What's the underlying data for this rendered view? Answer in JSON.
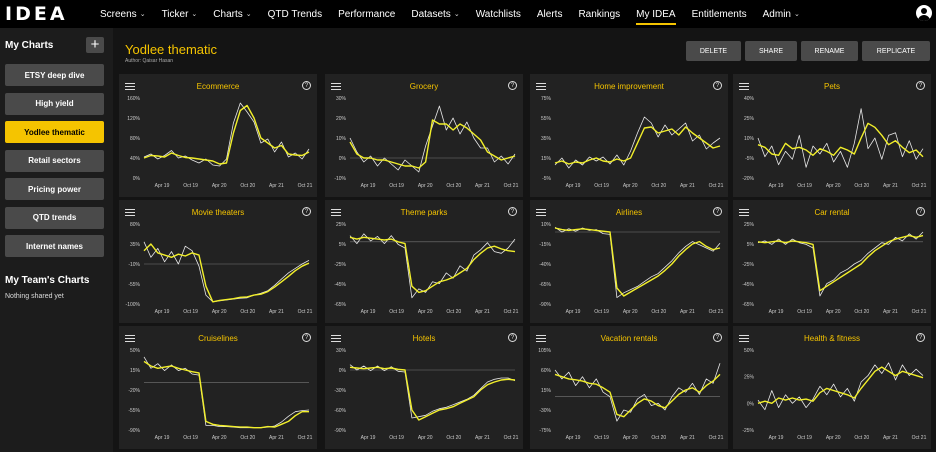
{
  "brand": {
    "logo_text": "IDEA"
  },
  "nav": [
    {
      "label": "Screens",
      "caret": true
    },
    {
      "label": "Ticker",
      "caret": true
    },
    {
      "label": "Charts",
      "caret": true
    },
    {
      "label": "QTD Trends",
      "caret": false
    },
    {
      "label": "Performance",
      "caret": false
    },
    {
      "label": "Datasets",
      "caret": true
    },
    {
      "label": "Watchlists",
      "caret": false
    },
    {
      "label": "Alerts",
      "caret": false
    },
    {
      "label": "Rankings",
      "caret": false
    },
    {
      "label": "My IDEA",
      "caret": false,
      "active": true
    },
    {
      "label": "Entitlements",
      "caret": false
    },
    {
      "label": "Admin",
      "caret": true
    }
  ],
  "sidebar": {
    "heading": "My Charts",
    "add_label": "+",
    "items": [
      {
        "label": "ETSY deep dive"
      },
      {
        "label": "High yield"
      },
      {
        "label": "Yodlee thematic",
        "active": true
      },
      {
        "label": "Retail sectors"
      },
      {
        "label": "Pricing power"
      },
      {
        "label": "QTD trends"
      },
      {
        "label": "Internet names"
      }
    ],
    "team_heading": "My Team's Charts",
    "team_empty": "Nothing shared yet"
  },
  "page": {
    "title": "Yodlee thematic",
    "author": "Author: Qaisar Hasan",
    "buttons": {
      "delete": "DELETE",
      "share": "SHARE",
      "rename": "RENAME",
      "replicate": "REPLICATE"
    }
  },
  "colors": {
    "accent": "#f5c400",
    "line_yellow": "#f2ef2a",
    "line_white": "#e8e8e8"
  },
  "icons": {
    "menu": "hamburger-icon",
    "help": "help-icon",
    "user": "user-icon"
  },
  "chart_data": [
    {
      "type": "line",
      "title": "Ecommerce",
      "yticks": [
        "160%",
        "120%",
        "80%",
        "40%",
        "0%"
      ],
      "ylim": [
        0,
        160
      ],
      "xticks": [
        "Apr 19",
        "Oct 19",
        "Apr 20",
        "Oct 20",
        "Apr 21",
        "Oct 21"
      ],
      "ref": null,
      "series": [
        {
          "values": [
            40,
            45,
            44,
            42,
            50,
            45,
            41,
            40,
            38,
            36,
            34,
            28,
            30,
            90,
            135,
            145,
            120,
            80,
            70,
            60,
            65,
            48,
            46,
            45,
            52
          ]
        },
        {
          "values": [
            42,
            48,
            38,
            45,
            55,
            40,
            44,
            36,
            30,
            38,
            26,
            24,
            38,
            110,
            150,
            132,
            112,
            70,
            78,
            52,
            72,
            42,
            50,
            38,
            58
          ]
        }
      ]
    },
    {
      "type": "line",
      "title": "Grocery",
      "yticks": [
        "30%",
        "20%",
        "10%",
        "0%",
        "-10%"
      ],
      "ylim": [
        -10,
        30
      ],
      "xticks": [
        "Apr 19",
        "Oct 19",
        "Apr 20",
        "Oct 20",
        "Apr 21",
        "Oct 21"
      ],
      "ref": 0,
      "series": [
        {
          "values": [
            8,
            2,
            0,
            0,
            -1,
            -1,
            -2,
            -3,
            -4,
            -4,
            -5,
            -2,
            19,
            17,
            17,
            14,
            17,
            15,
            12,
            9,
            3,
            1,
            -1,
            0,
            1
          ]
        },
        {
          "values": [
            10,
            3,
            -2,
            1,
            -4,
            0,
            -3,
            -6,
            -1,
            -4,
            -7,
            6,
            16,
            26,
            14,
            20,
            12,
            18,
            10,
            5,
            5,
            -2,
            1,
            -3,
            2
          ]
        }
      ]
    },
    {
      "type": "line",
      "title": "Home improvement",
      "yticks": [
        "75%",
        "55%",
        "35%",
        "15%",
        "-5%"
      ],
      "ylim": [
        -5,
        75
      ],
      "xticks": [
        "Apr 19",
        "Oct 19",
        "Apr 20",
        "Oct 20",
        "Apr 21",
        "Oct 21"
      ],
      "ref": null,
      "series": [
        {
          "values": [
            10,
            12,
            9,
            11,
            10,
            13,
            15,
            12,
            11,
            14,
            12,
            15,
            30,
            45,
            46,
            40,
            42,
            44,
            38,
            46,
            40,
            35,
            30,
            25,
            27
          ]
        },
        {
          "values": [
            8,
            15,
            5,
            13,
            8,
            16,
            12,
            16,
            9,
            18,
            8,
            22,
            40,
            56,
            50,
            36,
            48,
            38,
            44,
            50,
            32,
            38,
            24,
            30,
            35
          ]
        }
      ]
    },
    {
      "type": "line",
      "title": "Pets",
      "yticks": [
        "40%",
        "25%",
        "10%",
        "-5%",
        "-20%"
      ],
      "ylim": [
        -20,
        40
      ],
      "xticks": [
        "Apr 19",
        "Oct 19",
        "Apr 20",
        "Oct 20",
        "Apr 21",
        "Oct 21"
      ],
      "ref": null,
      "series": [
        {
          "values": [
            5,
            3,
            -2,
            -3,
            6,
            2,
            3,
            1,
            -3,
            2,
            0,
            -3,
            3,
            1,
            -2,
            10,
            21,
            18,
            12,
            5,
            8,
            3,
            -1,
            1,
            -4
          ]
        },
        {
          "values": [
            10,
            -4,
            4,
            -10,
            0,
            -6,
            12,
            -12,
            4,
            -2,
            6,
            -8,
            0,
            -12,
            6,
            32,
            2,
            10,
            -6,
            12,
            14,
            -4,
            8,
            -6,
            2
          ]
        }
      ]
    },
    {
      "type": "line",
      "title": "Movie theaters",
      "yticks": [
        "80%",
        "35%",
        "-10%",
        "-55%",
        "-100%"
      ],
      "ylim": [
        -100,
        80
      ],
      "xticks": [
        "Apr 19",
        "Oct 19",
        "Apr 20",
        "Oct 20",
        "Apr 21",
        "Oct 21"
      ],
      "ref": -10,
      "series": [
        {
          "values": [
            20,
            35,
            15,
            10,
            5,
            12,
            8,
            15,
            10,
            -60,
            -95,
            -92,
            -90,
            -88,
            -85,
            -84,
            -80,
            -78,
            -72,
            -62,
            -50,
            -38,
            -25,
            -15,
            -8
          ]
        },
        {
          "values": [
            40,
            5,
            25,
            -5,
            18,
            -10,
            30,
            20,
            -15,
            -80,
            -95,
            -93,
            -91,
            -89,
            -87,
            -86,
            -80,
            -76,
            -70,
            -58,
            -44,
            -30,
            -20,
            -10,
            -2
          ]
        }
      ]
    },
    {
      "type": "line",
      "title": "Theme parks",
      "yticks": [
        "25%",
        "5%",
        "-25%",
        "-45%",
        "-65%"
      ],
      "ylim": [
        -65,
        25
      ],
      "xticks": [
        "Apr 19",
        "Oct 19",
        "Apr 20",
        "Oct 20",
        "Apr 21",
        "Oct 21"
      ],
      "ref": 5,
      "series": [
        {
          "values": [
            10,
            8,
            10,
            9,
            8,
            7,
            8,
            5,
            3,
            -45,
            -52,
            -50,
            -45,
            -40,
            -38,
            -35,
            -30,
            -25,
            -15,
            -8,
            -2,
            0,
            -3,
            -5,
            -6
          ]
        },
        {
          "values": [
            12,
            3,
            14,
            6,
            11,
            3,
            12,
            2,
            -2,
            -58,
            -48,
            -52,
            -40,
            -42,
            -30,
            -36,
            -22,
            -28,
            -10,
            -4,
            4,
            -6,
            -8,
            -2,
            8
          ]
        }
      ]
    },
    {
      "type": "line",
      "title": "Airlines",
      "yticks": [
        "10%",
        "-15%",
        "-40%",
        "-65%",
        "-90%"
      ],
      "ylim": [
        -90,
        10
      ],
      "xticks": [
        "Apr 19",
        "Oct 19",
        "Apr 20",
        "Oct 20",
        "Apr 21",
        "Oct 21"
      ],
      "ref": 0,
      "series": [
        {
          "values": [
            5,
            3,
            2,
            3,
            4,
            3,
            2,
            1,
            0,
            -70,
            -80,
            -75,
            -70,
            -65,
            -60,
            -55,
            -48,
            -40,
            -30,
            -22,
            -15,
            -12,
            -18,
            -22,
            -20
          ]
        },
        {
          "values": [
            6,
            0,
            4,
            1,
            5,
            2,
            3,
            -2,
            -3,
            -82,
            -76,
            -72,
            -68,
            -62,
            -56,
            -52,
            -44,
            -36,
            -26,
            -18,
            -12,
            -16,
            -20,
            -24,
            -14
          ]
        }
      ]
    },
    {
      "type": "line",
      "title": "Car rental",
      "yticks": [
        "25%",
        "5%",
        "-25%",
        "-45%",
        "-65%"
      ],
      "ylim": [
        -65,
        25
      ],
      "xticks": [
        "Apr 19",
        "Oct 19",
        "Apr 20",
        "Oct 20",
        "Apr 21",
        "Oct 21"
      ],
      "ref": 5,
      "series": [
        {
          "values": [
            5,
            4,
            5,
            6,
            4,
            6,
            5,
            4,
            2,
            -50,
            -45,
            -40,
            -35,
            -30,
            -25,
            -20,
            -12,
            -5,
            0,
            5,
            8,
            10,
            12,
            10,
            12
          ]
        },
        {
          "values": [
            4,
            6,
            2,
            8,
            2,
            8,
            4,
            2,
            -2,
            -56,
            -42,
            -38,
            -30,
            -26,
            -20,
            -16,
            -8,
            -2,
            4,
            2,
            10,
            6,
            14,
            8,
            16
          ]
        }
      ]
    },
    {
      "type": "line",
      "title": "Cruiselines",
      "yticks": [
        "50%",
        "15%",
        "-20%",
        "-55%",
        "-90%"
      ],
      "ylim": [
        -90,
        50
      ],
      "xticks": [
        "Apr 19",
        "Oct 19",
        "Apr 20",
        "Oct 20",
        "Apr 21",
        "Oct 21"
      ],
      "ref": -7,
      "series": [
        {
          "values": [
            30,
            22,
            18,
            20,
            22,
            18,
            15,
            12,
            10,
            -75,
            -80,
            -82,
            -83,
            -84,
            -85,
            -85,
            -86,
            -86,
            -84,
            -85,
            -80,
            -75,
            -65,
            -58,
            -58
          ]
        },
        {
          "values": [
            38,
            18,
            26,
            14,
            24,
            14,
            18,
            8,
            6,
            -82,
            -82,
            -84,
            -84,
            -85,
            -86,
            -86,
            -86,
            -86,
            -85,
            -83,
            -76,
            -66,
            -58,
            -56,
            -55
          ]
        }
      ]
    },
    {
      "type": "line",
      "title": "Hotels",
      "yticks": [
        "30%",
        "0%",
        "-30%",
        "-60%",
        "-90%"
      ],
      "ylim": [
        -90,
        30
      ],
      "xticks": [
        "Apr 19",
        "Oct 19",
        "Apr 20",
        "Oct 20",
        "Apr 21",
        "Oct 21"
      ],
      "ref": 0,
      "series": [
        {
          "values": [
            4,
            3,
            2,
            3,
            4,
            2,
            3,
            1,
            0,
            -60,
            -75,
            -70,
            -65,
            -60,
            -58,
            -55,
            -50,
            -45,
            -40,
            -30,
            -22,
            -18,
            -15,
            -14,
            -15
          ]
        },
        {
          "values": [
            8,
            0,
            6,
            -1,
            6,
            -1,
            5,
            -2,
            -3,
            -72,
            -70,
            -68,
            -62,
            -58,
            -56,
            -52,
            -48,
            -44,
            -38,
            -28,
            -18,
            -14,
            -12,
            -12,
            -16
          ]
        }
      ]
    },
    {
      "type": "line",
      "title": "Vacation rentals",
      "yticks": [
        "105%",
        "60%",
        "15%",
        "-30%",
        "-75%"
      ],
      "ylim": [
        -75,
        105
      ],
      "xticks": [
        "Apr 19",
        "Oct 19",
        "Apr 20",
        "Oct 20",
        "Apr 21",
        "Oct 21"
      ],
      "ref": 0,
      "series": [
        {
          "values": [
            50,
            45,
            40,
            38,
            35,
            30,
            28,
            20,
            10,
            -40,
            -45,
            -30,
            -15,
            -5,
            -10,
            -20,
            -25,
            -10,
            5,
            15,
            20,
            10,
            25,
            35,
            50
          ]
        },
        {
          "values": [
            60,
            40,
            55,
            25,
            45,
            20,
            40,
            10,
            0,
            -55,
            -30,
            -35,
            -5,
            5,
            -20,
            -15,
            -30,
            0,
            20,
            10,
            30,
            5,
            40,
            30,
            75
          ]
        }
      ]
    },
    {
      "type": "line",
      "title": "Health & fitness",
      "yticks": [
        "50%",
        "25%",
        "0%",
        "-25%"
      ],
      "ylim": [
        -25,
        50
      ],
      "xticks": [
        "Apr 19",
        "Oct 19",
        "Apr 20",
        "Oct 20",
        "Apr 21",
        "Oct 21"
      ],
      "ref": null,
      "series": [
        {
          "values": [
            0,
            2,
            0,
            5,
            3,
            5,
            3,
            4,
            2,
            10,
            14,
            12,
            10,
            8,
            5,
            14,
            22,
            30,
            34,
            30,
            26,
            30,
            28,
            26,
            24
          ]
        },
        {
          "values": [
            3,
            -6,
            12,
            -4,
            8,
            0,
            6,
            -4,
            4,
            16,
            8,
            18,
            6,
            14,
            2,
            20,
            26,
            36,
            28,
            38,
            22,
            36,
            26,
            32,
            26
          ]
        }
      ]
    }
  ]
}
